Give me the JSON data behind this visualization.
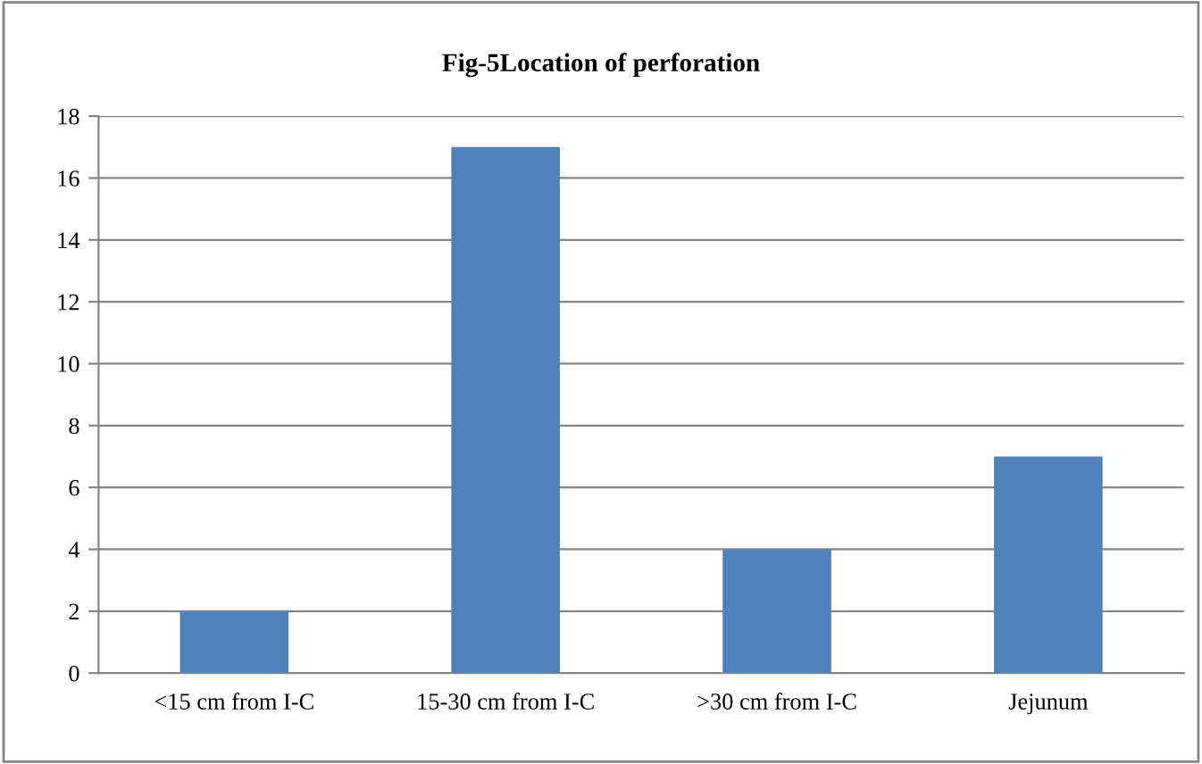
{
  "chart_data": {
    "type": "bar",
    "title": "Fig-5Location of perforation",
    "categories": [
      "<15 cm from I-C",
      "15-30 cm from I-C",
      ">30 cm from I-C",
      "Jejunum"
    ],
    "values": [
      2,
      17,
      4,
      7
    ],
    "color": "#4f81bd",
    "ylim": [
      0,
      18
    ],
    "yticks": [
      0,
      2,
      4,
      6,
      8,
      10,
      12,
      14,
      16,
      18
    ],
    "grid": "y",
    "legend": false
  }
}
